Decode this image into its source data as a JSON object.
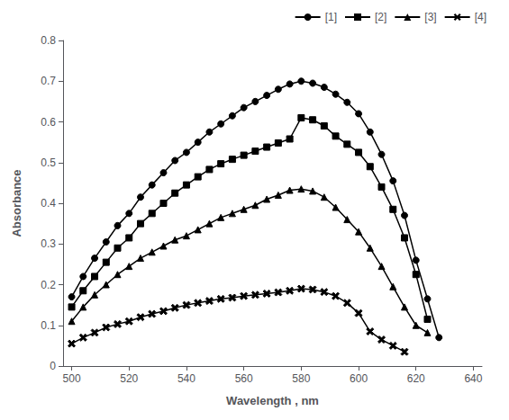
{
  "chart_data": {
    "type": "line",
    "x": [
      500,
      504,
      508,
      512,
      516,
      520,
      524,
      528,
      532,
      536,
      540,
      544,
      548,
      552,
      556,
      560,
      564,
      568,
      572,
      576,
      580,
      584,
      588,
      592,
      596,
      600,
      604,
      608,
      612,
      616,
      620,
      624,
      628
    ],
    "series": [
      {
        "name": "[1]",
        "marker": "circle",
        "color": "#000000",
        "values": [
          0.17,
          0.22,
          0.265,
          0.305,
          0.345,
          0.375,
          0.415,
          0.445,
          0.475,
          0.505,
          0.525,
          0.55,
          0.575,
          0.595,
          0.615,
          0.635,
          0.65,
          0.665,
          0.68,
          0.693,
          0.7,
          0.695,
          0.685,
          0.668,
          0.648,
          0.62,
          0.575,
          0.52,
          0.455,
          0.37,
          0.26,
          0.165,
          0.07
        ]
      },
      {
        "name": "[2]",
        "marker": "square",
        "color": "#000000",
        "values": [
          0.145,
          0.185,
          0.22,
          0.255,
          0.29,
          0.315,
          0.35,
          0.375,
          0.4,
          0.425,
          0.445,
          0.465,
          0.483,
          0.497,
          0.508,
          0.518,
          0.528,
          0.538,
          0.548,
          0.558,
          0.61,
          0.605,
          0.59,
          0.565,
          0.545,
          0.525,
          0.49,
          0.44,
          0.385,
          0.315,
          0.225,
          0.115,
          null
        ]
      },
      {
        "name": "[3]",
        "marker": "triangle",
        "color": "#000000",
        "values": [
          0.11,
          0.145,
          0.175,
          0.2,
          0.225,
          0.245,
          0.265,
          0.28,
          0.295,
          0.31,
          0.32,
          0.335,
          0.35,
          0.365,
          0.375,
          0.385,
          0.395,
          0.41,
          0.42,
          0.432,
          0.435,
          0.43,
          0.415,
          0.39,
          0.36,
          0.33,
          0.29,
          0.245,
          0.195,
          0.145,
          0.1,
          0.082,
          null
        ]
      },
      {
        "name": "[4]",
        "marker": "x",
        "color": "#000000",
        "values": [
          0.055,
          0.07,
          0.082,
          0.095,
          0.103,
          0.11,
          0.12,
          0.128,
          0.135,
          0.143,
          0.15,
          0.155,
          0.16,
          0.165,
          0.168,
          0.172,
          0.175,
          0.178,
          0.181,
          0.185,
          0.19,
          0.188,
          0.182,
          0.172,
          0.155,
          0.13,
          0.085,
          0.065,
          0.05,
          0.035,
          null,
          null,
          null
        ]
      }
    ],
    "xlabel": "Wavelength , nm",
    "ylabel": "Absorbance",
    "xlim": [
      497,
      643
    ],
    "ylim": [
      0,
      0.8
    ],
    "xticks": [
      500,
      520,
      540,
      560,
      580,
      600,
      620,
      640
    ],
    "yticks": [
      0,
      0.1,
      0.2,
      0.3,
      0.4,
      0.5,
      0.6,
      0.7,
      0.8
    ],
    "grid": false,
    "legend": "upper right"
  }
}
